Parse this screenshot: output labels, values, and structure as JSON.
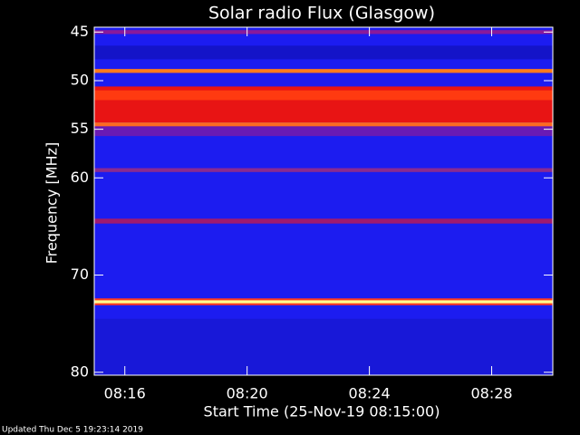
{
  "chart_data": {
    "type": "spectrogram",
    "title": "Solar radio Flux (Glasgow)",
    "x_label": "Start Time (25-Nov-19 08:15:00)",
    "y_label": "Frequency [MHz]",
    "footer": "Updated Thu Dec  5 19:23:14 2019",
    "background_color": "#1c1cf0",
    "xlim": [
      "08:15:00",
      "08:30:00"
    ],
    "xticks": [
      "08:16",
      "08:20",
      "08:24",
      "08:28"
    ],
    "ylim": [
      44.5,
      80.3
    ],
    "yticks": [
      45,
      50,
      55,
      60,
      70,
      80
    ],
    "bands": [
      {
        "range": [
          44.8,
          45.2
        ],
        "color": "#8a1a9a"
      },
      {
        "range": [
          46.4,
          47.8
        ],
        "color": "#1414c8"
      },
      {
        "range": [
          48.8,
          49.2
        ],
        "color": "#ff7a1a"
      },
      {
        "range": [
          50.6,
          54.3
        ],
        "color": "#e81414"
      },
      {
        "range": [
          51.0,
          52.0
        ],
        "color": "#ff3a10"
      },
      {
        "range": [
          54.3,
          54.7
        ],
        "color": "#ff6a20"
      },
      {
        "range": [
          54.7,
          55.7
        ],
        "color": "#6a1ab4"
      },
      {
        "range": [
          59.0,
          59.4
        ],
        "color": "#8a2a90"
      },
      {
        "range": [
          64.2,
          64.7
        ],
        "color": "#a01a70"
      },
      {
        "range": [
          72.4,
          73.1
        ],
        "color": "#ff3a20"
      },
      {
        "range": [
          72.6,
          72.9
        ],
        "color": "#ffff90"
      },
      {
        "range": [
          74.5,
          80.3
        ],
        "color": "#1818d8"
      }
    ]
  }
}
